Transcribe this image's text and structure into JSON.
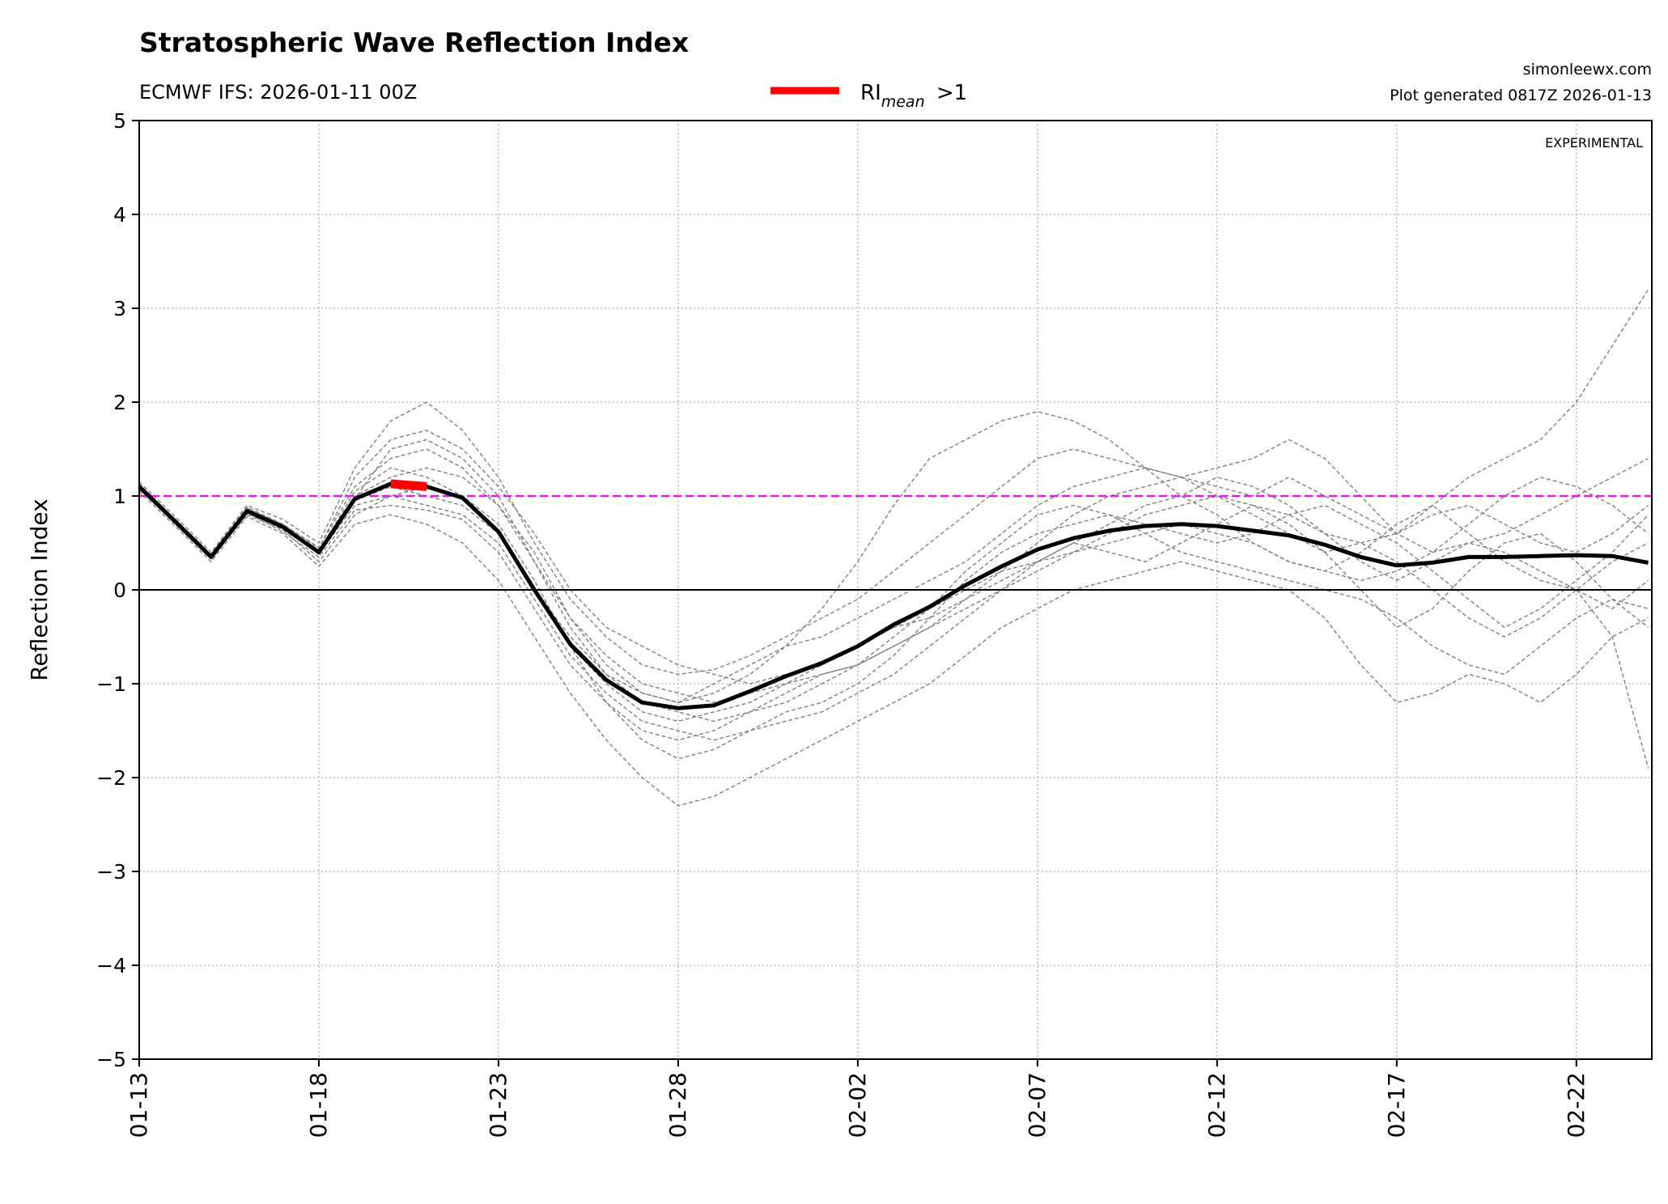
{
  "chart_data": {
    "type": "line",
    "title": "Stratospheric Wave Reflection Index",
    "subtitle": "ECMWF IFS: 2026-01-11 00Z",
    "credit": "simonleewx.com",
    "generated": "Plot generated 0817Z 2026-01-13",
    "annotation": "EXPERIMENTAL",
    "ylabel": "Reflection Index",
    "xlabel": "",
    "ylim": [
      -5,
      5
    ],
    "yticks": [
      "5",
      "4",
      "3",
      "2",
      "1",
      "0",
      "−1",
      "−2",
      "−3",
      "−4",
      "−5"
    ],
    "ytick_values": [
      5,
      4,
      3,
      2,
      1,
      0,
      -1,
      -2,
      -3,
      -4,
      -5
    ],
    "xlim": [
      "2026-01-13",
      "2026-02-24"
    ],
    "xticks": [
      "01-13",
      "01-18",
      "01-23",
      "01-28",
      "02-02",
      "02-07",
      "02-12",
      "02-17",
      "02-22"
    ],
    "xtick_dates": [
      "2026-01-13",
      "2026-01-18",
      "2026-01-23",
      "2026-01-28",
      "2026-02-02",
      "2026-02-07",
      "2026-02-12",
      "2026-02-17",
      "2026-02-22"
    ],
    "grid": true,
    "legend": {
      "placement": "top-center",
      "label_main": "RI",
      "label_sub": "mean",
      "label_tail": " >1",
      "color": "#ff0000"
    },
    "threshold": {
      "value": 1,
      "color": "#e619e6"
    },
    "zero_line_color": "#000000",
    "mean_color": "#000000",
    "member_color": "#808080",
    "highlight_color": "#ff0000",
    "x_start": "2026-01-13",
    "x_step_days": 1,
    "mean": [
      1.1,
      0.73,
      0.35,
      0.84,
      0.67,
      0.4,
      0.97,
      1.13,
      1.1,
      0.98,
      0.62,
      0.0,
      -0.58,
      -0.96,
      -1.2,
      -1.26,
      -1.23,
      -1.08,
      -0.92,
      -0.78,
      -0.6,
      -0.37,
      -0.18,
      0.05,
      0.25,
      0.43,
      0.55,
      0.63,
      0.68,
      0.7,
      0.68,
      0.63,
      0.58,
      0.48,
      0.35,
      0.26,
      0.29,
      0.35,
      0.35,
      0.36,
      0.37,
      0.36,
      0.29
    ],
    "members": [
      [
        1.15,
        0.78,
        0.4,
        0.9,
        0.75,
        0.5,
        1.3,
        1.8,
        2.0,
        1.7,
        1.2,
        0.5,
        -0.1,
        -0.5,
        -0.8,
        -0.9,
        -0.85,
        -0.7,
        -0.5,
        -0.3,
        -0.1,
        0.2,
        0.5,
        0.8,
        1.1,
        1.4,
        1.5,
        1.4,
        1.3,
        1.2,
        1.1,
        1.0,
        1.2,
        1.0,
        0.8,
        0.6,
        0.9,
        1.2,
        1.4,
        1.6,
        2.0,
        2.6,
        3.2
      ],
      [
        1.05,
        0.68,
        0.3,
        0.78,
        0.6,
        0.25,
        0.7,
        0.8,
        0.7,
        0.5,
        0.1,
        -0.5,
        -1.1,
        -1.6,
        -2.0,
        -2.3,
        -2.2,
        -2.0,
        -1.8,
        -1.6,
        -1.4,
        -1.2,
        -1.0,
        -0.7,
        -0.4,
        -0.2,
        0.0,
        0.1,
        0.2,
        0.3,
        0.2,
        0.1,
        0.0,
        -0.3,
        -0.8,
        -1.2,
        -1.1,
        -0.9,
        -1.0,
        -1.2,
        -0.9,
        -0.5,
        -0.3
      ],
      [
        1.12,
        0.75,
        0.38,
        0.88,
        0.7,
        0.45,
        1.1,
        1.4,
        1.5,
        1.3,
        0.9,
        0.3,
        -0.3,
        -0.8,
        -1.1,
        -1.2,
        -1.1,
        -0.9,
        -0.6,
        -0.2,
        0.3,
        0.9,
        1.4,
        1.6,
        1.8,
        1.9,
        1.8,
        1.6,
        1.3,
        1.0,
        0.8,
        0.5,
        0.3,
        0.2,
        0.4,
        0.7,
        0.9,
        0.6,
        0.3,
        0.1,
        0.0,
        -0.2,
        0.1
      ],
      [
        1.08,
        0.7,
        0.33,
        0.82,
        0.62,
        0.35,
        0.85,
        0.9,
        0.85,
        0.75,
        0.4,
        -0.2,
        -0.8,
        -1.2,
        -1.5,
        -1.6,
        -1.5,
        -1.3,
        -1.1,
        -0.9,
        -0.8,
        -0.6,
        -0.4,
        -0.1,
        0.2,
        0.5,
        0.8,
        1.0,
        1.1,
        1.2,
        1.3,
        1.4,
        1.6,
        1.4,
        1.0,
        0.6,
        0.4,
        0.7,
        1.0,
        1.2,
        1.1,
        0.9,
        0.6
      ],
      [
        1.1,
        0.72,
        0.36,
        0.85,
        0.68,
        0.42,
        1.0,
        1.2,
        1.3,
        1.2,
        0.9,
        0.4,
        -0.3,
        -0.7,
        -1.0,
        -1.1,
        -1.2,
        -1.1,
        -1.0,
        -0.9,
        -0.8,
        -0.6,
        -0.4,
        -0.2,
        0.0,
        0.2,
        0.4,
        0.6,
        0.8,
        0.9,
        1.0,
        0.9,
        0.7,
        0.4,
        0.0,
        -0.4,
        -0.2,
        0.2,
        0.5,
        0.6,
        0.3,
        -0.1,
        -0.4
      ],
      [
        1.09,
        0.74,
        0.35,
        0.83,
        0.66,
        0.38,
        0.9,
        1.0,
        0.9,
        0.8,
        0.5,
        -0.1,
        -0.7,
        -1.1,
        -1.4,
        -1.5,
        -1.6,
        -1.5,
        -1.3,
        -1.2,
        -1.0,
        -0.7,
        -0.3,
        0.1,
        0.4,
        0.6,
        0.7,
        0.8,
        0.7,
        0.6,
        0.5,
        0.6,
        0.8,
        0.9,
        0.7,
        0.5,
        0.2,
        -0.1,
        -0.4,
        -0.2,
        0.1,
        0.4,
        0.8
      ],
      [
        1.11,
        0.73,
        0.37,
        0.86,
        0.7,
        0.44,
        1.2,
        1.6,
        1.7,
        1.5,
        1.1,
        0.6,
        0.0,
        -0.4,
        -0.6,
        -0.8,
        -0.9,
        -1.0,
        -0.9,
        -0.8,
        -0.6,
        -0.4,
        -0.3,
        -0.1,
        0.1,
        0.3,
        0.5,
        0.4,
        0.3,
        0.5,
        0.7,
        0.9,
        0.8,
        0.6,
        0.5,
        0.3,
        0.0,
        -0.3,
        -0.5,
        -0.3,
        0.0,
        0.3,
        0.5
      ],
      [
        1.07,
        0.71,
        0.34,
        0.8,
        0.64,
        0.3,
        0.8,
        1.0,
        1.1,
        1.0,
        0.7,
        0.1,
        -0.6,
        -1.2,
        -1.6,
        -1.8,
        -1.7,
        -1.5,
        -1.4,
        -1.3,
        -1.1,
        -0.9,
        -0.6,
        -0.3,
        0.0,
        0.3,
        0.5,
        0.7,
        0.9,
        1.0,
        1.2,
        1.1,
        0.9,
        0.6,
        0.3,
        0.1,
        0.3,
        0.5,
        0.6,
        0.8,
        1.0,
        1.2,
        1.4
      ],
      [
        1.13,
        0.75,
        0.36,
        0.87,
        0.69,
        0.41,
        1.05,
        1.3,
        1.2,
        1.0,
        0.6,
        0.0,
        -0.5,
        -0.9,
        -1.2,
        -1.3,
        -1.4,
        -1.3,
        -1.2,
        -1.0,
        -0.8,
        -0.5,
        -0.2,
        0.2,
        0.5,
        0.8,
        0.9,
        0.8,
        0.6,
        0.4,
        0.3,
        0.2,
        0.1,
        0.0,
        -0.1,
        -0.3,
        -0.6,
        -0.8,
        -0.9,
        -0.6,
        -0.3,
        -0.1,
        -0.2
      ],
      [
        1.1,
        0.72,
        0.36,
        0.84,
        0.67,
        0.4,
        0.95,
        1.1,
        1.0,
        0.9,
        0.6,
        0.0,
        -0.6,
        -1.0,
        -1.3,
        -1.4,
        -1.3,
        -1.2,
        -1.0,
        -0.8,
        -0.6,
        -0.4,
        -0.2,
        0.0,
        0.2,
        0.3,
        0.4,
        0.5,
        0.6,
        0.7,
        0.6,
        0.5,
        0.3,
        0.2,
        0.1,
        0.2,
        0.4,
        0.5,
        0.4,
        0.2,
        0.0,
        -0.5,
        -1.9
      ],
      [
        1.1,
        0.73,
        0.35,
        0.84,
        0.67,
        0.4,
        0.97,
        1.5,
        1.6,
        1.4,
        1.0,
        0.3,
        -0.4,
        -0.9,
        -1.1,
        -1.2,
        -1.0,
        -0.8,
        -0.6,
        -0.5,
        -0.3,
        -0.1,
        0.1,
        0.3,
        0.6,
        0.9,
        1.1,
        1.2,
        1.3,
        1.2,
        1.0,
        0.8,
        0.6,
        0.4,
        0.5,
        0.6,
        0.8,
        0.9,
        0.7,
        0.5,
        0.4,
        0.6,
        0.9
      ]
    ]
  }
}
